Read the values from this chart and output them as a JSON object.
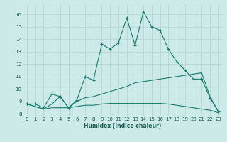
{
  "xlabel": "Humidex (Indice chaleur)",
  "bg_color": "#cceae7",
  "line_color": "#1a7a6e",
  "grid_color": "#b8d8d5",
  "xlim": [
    -0.5,
    23.5
  ],
  "ylim": [
    7.8,
    16.8
  ],
  "xticks": [
    0,
    1,
    2,
    3,
    4,
    5,
    6,
    7,
    8,
    9,
    10,
    11,
    12,
    13,
    14,
    15,
    16,
    17,
    18,
    19,
    20,
    21,
    22,
    23
  ],
  "yticks": [
    8,
    9,
    10,
    11,
    12,
    13,
    14,
    15,
    16
  ],
  "series": [
    {
      "x": [
        0,
        1,
        2,
        3,
        4,
        5,
        6,
        7,
        8,
        9,
        10,
        11,
        12,
        13,
        14,
        15,
        16,
        17,
        18,
        19,
        20,
        21,
        22,
        23
      ],
      "y": [
        8.8,
        8.8,
        8.5,
        9.6,
        9.4,
        8.5,
        9.1,
        11.0,
        10.7,
        13.6,
        13.2,
        13.7,
        15.7,
        13.5,
        16.2,
        15.0,
        14.7,
        13.2,
        12.2,
        11.5,
        10.8,
        10.8,
        9.3,
        8.2
      ],
      "marker": "+"
    },
    {
      "x": [
        0,
        2,
        3,
        4,
        5,
        6,
        7,
        8,
        9,
        10,
        11,
        12,
        13,
        14,
        15,
        16,
        17,
        18,
        19,
        20,
        21,
        22,
        23
      ],
      "y": [
        8.8,
        8.4,
        8.8,
        9.4,
        8.5,
        9.0,
        9.3,
        9.4,
        9.6,
        9.8,
        10.0,
        10.2,
        10.5,
        10.6,
        10.7,
        10.8,
        10.9,
        11.0,
        11.1,
        11.2,
        11.3,
        9.4,
        8.2
      ],
      "marker": null
    },
    {
      "x": [
        0,
        2,
        3,
        4,
        5,
        6,
        7,
        8,
        9,
        10,
        11,
        12,
        13,
        14,
        15,
        16,
        17,
        18,
        19,
        20,
        21,
        22,
        23
      ],
      "y": [
        8.8,
        8.4,
        8.5,
        8.5,
        8.5,
        8.6,
        8.7,
        8.7,
        8.8,
        8.85,
        8.85,
        8.85,
        8.85,
        8.85,
        8.85,
        8.85,
        8.8,
        8.7,
        8.6,
        8.5,
        8.4,
        8.3,
        8.1
      ],
      "marker": null
    }
  ]
}
